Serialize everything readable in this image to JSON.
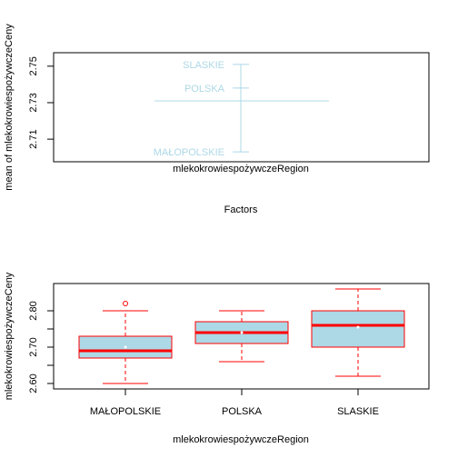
{
  "chart_data": [
    {
      "type": "scatter",
      "subtype": "design-plot",
      "xlabel": "Factors",
      "ylabel": "mean of mlekokrowiespożywczeCeny",
      "factor_label": "mlekokrowiespożywczeRegion",
      "grand_mean": 2.731,
      "levels": [
        {
          "name": "SLASKIE",
          "mean": 2.751
        },
        {
          "name": "POLSKA",
          "mean": 2.738
        },
        {
          "name": "MAŁOPOLSKIE",
          "mean": 2.703
        }
      ],
      "ylim": [
        2.7,
        2.755
      ],
      "yticks": [
        "2.71",
        "2.73",
        "2.75"
      ],
      "ytick_values": [
        2.71,
        2.73,
        2.75
      ],
      "color": "#ADD8E6"
    },
    {
      "type": "boxplot",
      "xlabel": "mlekokrowiespożywczeRegion",
      "ylabel": "mlekokrowiespożywczeCeny",
      "categories": [
        "MAŁOPOLSKIE",
        "POLSKA",
        "SLASKIE"
      ],
      "boxes": [
        {
          "min": 2.6,
          "q1": 2.67,
          "median": 2.69,
          "q3": 2.73,
          "max": 2.8,
          "mean": 2.7,
          "outliers": [
            2.82
          ]
        },
        {
          "min": 2.66,
          "q1": 2.71,
          "median": 2.74,
          "q3": 2.77,
          "max": 2.8,
          "mean": 2.74,
          "outliers": []
        },
        {
          "min": 2.62,
          "q1": 2.7,
          "median": 2.76,
          "q3": 2.8,
          "max": 2.86,
          "mean": 2.755,
          "outliers": []
        }
      ],
      "ylim": [
        2.585,
        2.875
      ],
      "yticks": [
        "2.60",
        "2.70",
        "2.80"
      ],
      "ytick_values": [
        2.6,
        2.7,
        2.8
      ],
      "fill_color": "#ADD8E6",
      "border_color": "#FF0000",
      "median_color": "#FF0000"
    }
  ]
}
